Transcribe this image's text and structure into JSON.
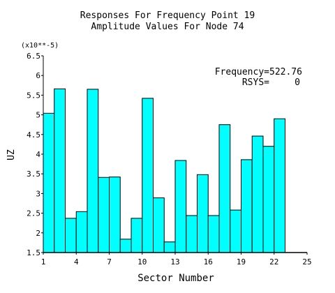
{
  "chart_data": {
    "type": "bar",
    "title": "Responses For Frequency Point 19",
    "subtitle": "Amplitude Values For Node 74",
    "xlabel": "Sector Number",
    "ylabel": "UZ",
    "scale_label": "(x10**-5)",
    "x": [
      1,
      2,
      3,
      4,
      5,
      6,
      7,
      8,
      9,
      10,
      11,
      12,
      13,
      14,
      15,
      16,
      17,
      18,
      19,
      20,
      21,
      22
    ],
    "values": [
      5.04,
      5.66,
      2.37,
      2.54,
      5.65,
      3.41,
      3.42,
      1.84,
      2.37,
      5.42,
      2.89,
      1.77,
      3.84,
      2.44,
      3.48,
      2.44,
      4.75,
      2.58,
      3.86,
      4.46,
      4.2,
      4.9
    ],
    "xlim": [
      1,
      25
    ],
    "ylim": [
      1.5,
      6.5
    ],
    "xticks": [
      1,
      4,
      7,
      10,
      13,
      16,
      19,
      22,
      25
    ],
    "yticks": [
      1.5,
      2,
      2.5,
      3,
      3.5,
      4,
      4.5,
      5,
      5.5,
      6,
      6.5
    ],
    "grid": false,
    "bar_color": "#00ffff",
    "annotations": [
      {
        "label": "Frequency=",
        "value": "522.76"
      },
      {
        "label": "RSYS=",
        "value": "0"
      }
    ]
  }
}
